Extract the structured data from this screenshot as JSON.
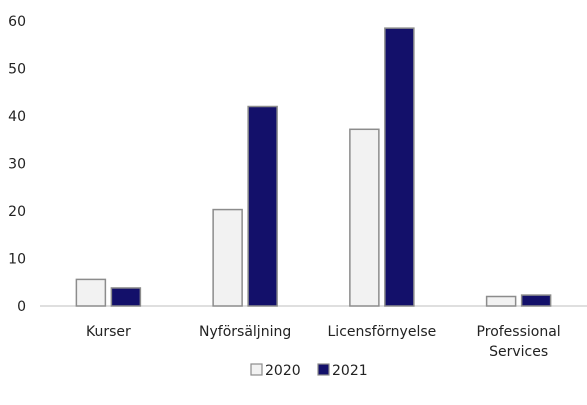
{
  "chart_data": {
    "type": "bar",
    "categories": [
      [
        "Kurser"
      ],
      [
        "Nyförsäljning"
      ],
      [
        "Licensförnyelse"
      ],
      [
        "Professional",
        "Services"
      ]
    ],
    "series": [
      {
        "name": "2020",
        "values": [
          5.6,
          20.3,
          37.2,
          2.0
        ],
        "color": "#f2f2f2"
      },
      {
        "name": "2021",
        "values": [
          3.8,
          42.0,
          58.5,
          2.3
        ],
        "color": "#13106a"
      }
    ],
    "ylim": [
      0,
      60
    ],
    "yticks": [
      0,
      10,
      20,
      30,
      40,
      50,
      60
    ],
    "grid": false,
    "legend": "bottom",
    "bar_outline_color": "#8c8c8c"
  }
}
